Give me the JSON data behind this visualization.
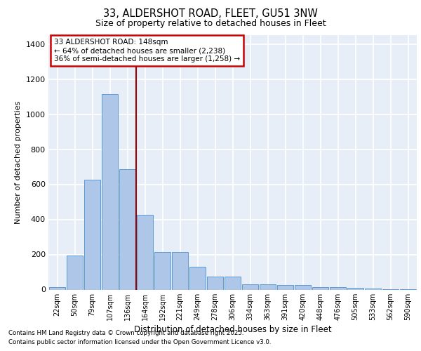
{
  "title_line1": "33, ALDERSHOT ROAD, FLEET, GU51 3NW",
  "title_line2": "Size of property relative to detached houses in Fleet",
  "categories": [
    "22sqm",
    "50sqm",
    "79sqm",
    "107sqm",
    "136sqm",
    "164sqm",
    "192sqm",
    "221sqm",
    "249sqm",
    "278sqm",
    "306sqm",
    "334sqm",
    "363sqm",
    "391sqm",
    "420sqm",
    "448sqm",
    "476sqm",
    "505sqm",
    "533sqm",
    "562sqm",
    "590sqm"
  ],
  "values": [
    15,
    195,
    625,
    1115,
    685,
    425,
    215,
    215,
    130,
    75,
    75,
    30,
    30,
    25,
    25,
    15,
    15,
    10,
    5,
    2,
    2
  ],
  "bar_color": "#aec6e8",
  "bar_edge_color": "#5b9bd5",
  "background_color": "#e8eef8",
  "grid_color": "#ffffff",
  "ylabel": "Number of detached properties",
  "xlabel": "Distribution of detached houses by size in Fleet",
  "ylim": [
    0,
    1450
  ],
  "annotation_box_text": "33 ALDERSHOT ROAD: 148sqm\n← 64% of detached houses are smaller (2,238)\n36% of semi-detached houses are larger (1,258) →",
  "vline_x": 4.5,
  "footer_line1": "Contains HM Land Registry data © Crown copyright and database right 2025.",
  "footer_line2": "Contains public sector information licensed under the Open Government Licence v3.0.",
  "annotation_box_color": "#cc0000",
  "vline_color": "#990000",
  "yticks": [
    0,
    200,
    400,
    600,
    800,
    1000,
    1200,
    1400
  ]
}
